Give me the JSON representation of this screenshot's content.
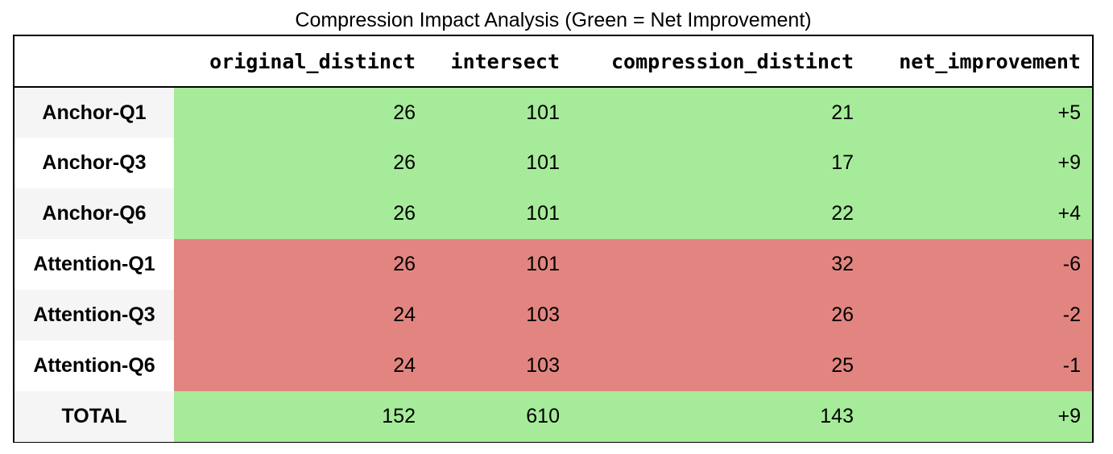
{
  "chart_data": {
    "type": "table",
    "title": "Compression Impact Analysis (Green = Net Improvement)",
    "columns": [
      "original_distinct",
      "intersect",
      "compression_distinct",
      "net_improvement"
    ],
    "rows": [
      {
        "label": "Anchor-Q1",
        "values": [
          "26",
          "101",
          "21",
          "+5"
        ],
        "status": "improvement"
      },
      {
        "label": "Anchor-Q3",
        "values": [
          "26",
          "101",
          "17",
          "+9"
        ],
        "status": "improvement"
      },
      {
        "label": "Anchor-Q6",
        "values": [
          "26",
          "101",
          "22",
          "+4"
        ],
        "status": "improvement"
      },
      {
        "label": "Attention-Q1",
        "values": [
          "26",
          "101",
          "32",
          "-6"
        ],
        "status": "regression"
      },
      {
        "label": "Attention-Q3",
        "values": [
          "24",
          "103",
          "26",
          "-2"
        ],
        "status": "regression"
      },
      {
        "label": "Attention-Q6",
        "values": [
          "24",
          "103",
          "25",
          "-1"
        ],
        "status": "regression"
      },
      {
        "label": "TOTAL",
        "values": [
          "152",
          "610",
          "143",
          "+9"
        ],
        "status": "improvement"
      }
    ],
    "colors": {
      "improvement": "#a6eb9a",
      "regression": "#e28580"
    }
  }
}
